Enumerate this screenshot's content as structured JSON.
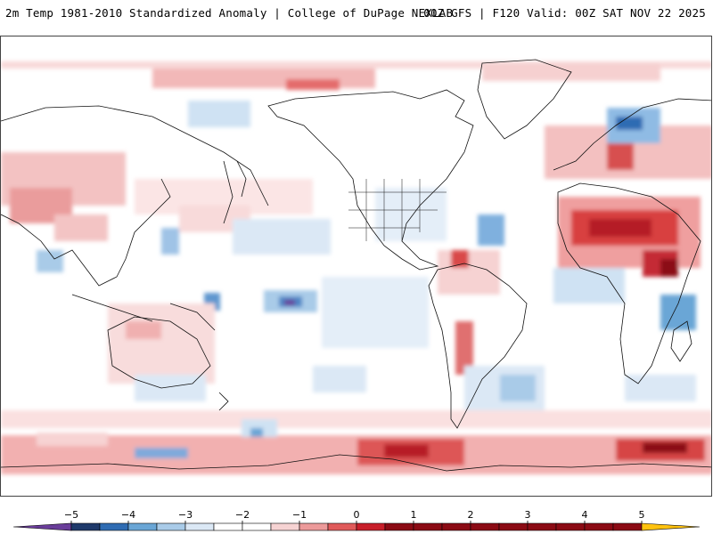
{
  "header": {
    "title": "2m Temp 1981-2010 Standardized Anomaly | College of DuPage NEXLAB",
    "run_info": "00Z GFS | F120 Valid: 00Z SAT NOV 22 2025"
  },
  "map": {
    "projection": "equirectangular, Pacific-centered",
    "variable": "2m temperature standardized anomaly"
  },
  "legend": {
    "ticks": [
      "-5",
      "-4",
      "-3",
      "-2",
      "-1",
      "0",
      "1",
      "2",
      "3",
      "4",
      "5"
    ],
    "colors": [
      "#6a3d9a",
      "#1f3a6b",
      "#2f6cb3",
      "#6aa6d6",
      "#a9cbe8",
      "#dbe8f5",
      "#ffffff",
      "#ffffff",
      "#f6d3d3",
      "#ec9a9a",
      "#e05a5a",
      "#c81e2a",
      "#8b0a14",
      "#ffc20e"
    ]
  }
}
